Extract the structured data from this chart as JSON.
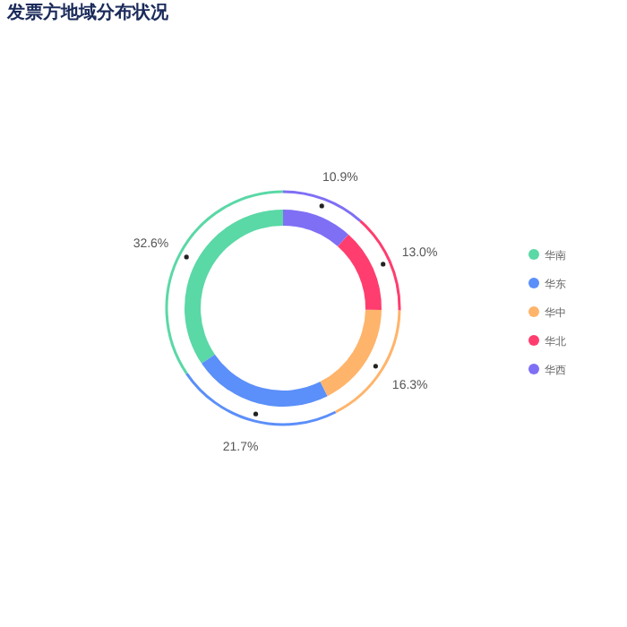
{
  "chart_data": {
    "type": "donut",
    "title": "发票方地域分布状况",
    "categories": [
      "华南",
      "华东",
      "华中",
      "华北",
      "华西"
    ],
    "values": [
      32.6,
      21.7,
      16.3,
      13.0,
      10.9
    ],
    "colors": [
      "#5ad8a6",
      "#5b8ff9",
      "#ffb46b",
      "#ff3d6e",
      "#7f6ff5"
    ],
    "value_labels": [
      "32.6%",
      "21.7%",
      "16.3%",
      "13.0%",
      "10.9%"
    ],
    "legend": "right"
  }
}
